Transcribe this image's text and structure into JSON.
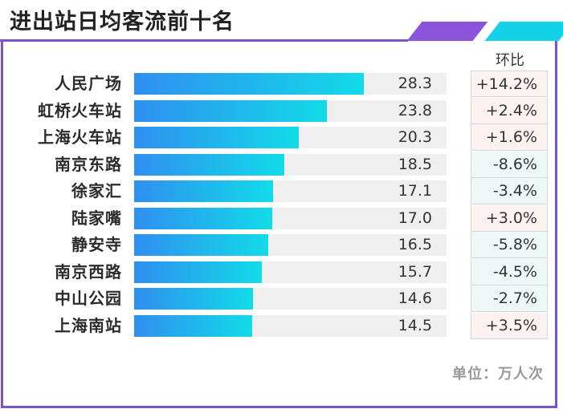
{
  "title": "进出站日均客流前十名",
  "unit_note": "单位：万人次",
  "colors": {
    "frame": "#7a53c6",
    "accent_purple": "#8a55da",
    "accent_cyan": "#12d2ea",
    "bar_gradient_start": "#2f8ff0",
    "bar_gradient_end": "#12dbe8",
    "positive_bg": "#fdf2f2",
    "negative_bg": "#eef8f6"
  },
  "chart_data": {
    "type": "bar",
    "orientation": "horizontal",
    "title": "进出站日均客流前十名",
    "xlim": [
      0,
      38.5
    ],
    "categories": [
      "人民广场",
      "虹桥火车站",
      "上海火车站",
      "南京东路",
      "徐家汇",
      "陆家嘴",
      "静安寺",
      "南京西路",
      "中山公园",
      "上海南站"
    ],
    "values": [
      28.3,
      23.8,
      20.3,
      18.5,
      17.1,
      17.0,
      16.5,
      15.7,
      14.6,
      14.5
    ],
    "value_labels": [
      "28.3",
      "23.8",
      "20.3",
      "18.5",
      "17.1",
      "17.0",
      "16.5",
      "15.7",
      "14.6",
      "14.5"
    ],
    "change_header": "环比",
    "changes": [
      "+14.2%",
      "+2.4%",
      "+1.6%",
      "-8.6%",
      "-3.4%",
      "+3.0%",
      "-5.8%",
      "-4.5%",
      "-2.7%",
      "+3.5%"
    ],
    "unit": "单位：万人次"
  }
}
